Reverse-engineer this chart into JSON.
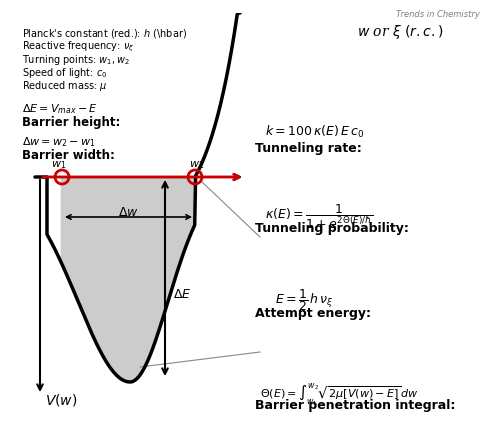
{
  "background_color": "#ffffff",
  "curve_color": "#000000",
  "fill_color": "#cccccc",
  "arrow_color": "#cc0000",
  "annotation_line_color": "#888888",
  "brand": "Trends in Chemistry",
  "vw_label": "$V(w)$",
  "xaxis_label": "$w$ or $\\xi$ $(r.c.)$",
  "delta_E_label": "$\\Delta E$",
  "delta_w_label": "$\\Delta w$",
  "w1_label": "$w_1$",
  "w2_label": "$w_2$",
  "bpi_bold": "Barrier penetration integral:",
  "bpi_eq": "$\\Theta(E) = \\int_{w_1}^{w_2} \\sqrt{2\\mu[V(w) - E]}\\, dw$",
  "ae_bold": "Attempt energy:",
  "ae_eq": "$E = \\dfrac{1}{2}\\, h\\, \\nu_{\\xi}$",
  "tp_bold": "Tunneling probability:",
  "tp_eq": "$\\kappa(E) = \\dfrac{1}{1 + e^{2\\Theta(E)/\\hbar}}$",
  "tr_bold": "Tunneling rate:",
  "tr_eq": "$k = 100\\, \\kappa(E)\\, E\\, c_0$",
  "bw_bold": "Barrier width:",
  "bw_eq": "$\\Delta w = w_2 - w_1$",
  "bh_bold": "Barrier height:",
  "bh_eq": "$\\Delta E = V_{max} - E$",
  "notes": [
    "Reduced mass: $\\mu$",
    "Speed of light: $c_0$",
    "Turning points: $w_1, w_2$",
    "Reactive frequency: $\\nu_{\\xi}$",
    "Planck's constant (red.): $h$ $($\\hbar$)$"
  ]
}
